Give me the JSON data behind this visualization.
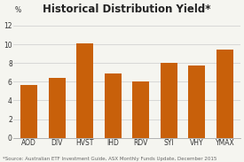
{
  "categories": [
    "AOD",
    "DIV",
    "HVST",
    "IHD",
    "RDV",
    "SYI",
    "VHY",
    "YMAX"
  ],
  "values": [
    5.6,
    6.4,
    10.1,
    6.9,
    6.0,
    8.05,
    7.75,
    9.45
  ],
  "bar_color": "#c8600a",
  "title": "Historical Distribution Yield*",
  "percent_label": "%",
  "ylim": [
    0,
    13
  ],
  "yticks": [
    0,
    2,
    4,
    6,
    8,
    10,
    12
  ],
  "source_text": "*Source: Australian ETF Investment Guide, ASX Monthly Funds Update, December 2015",
  "title_fontsize": 8.5,
  "tick_fontsize": 5.5,
  "source_fontsize": 4.0,
  "background_color": "#f5f5f0"
}
